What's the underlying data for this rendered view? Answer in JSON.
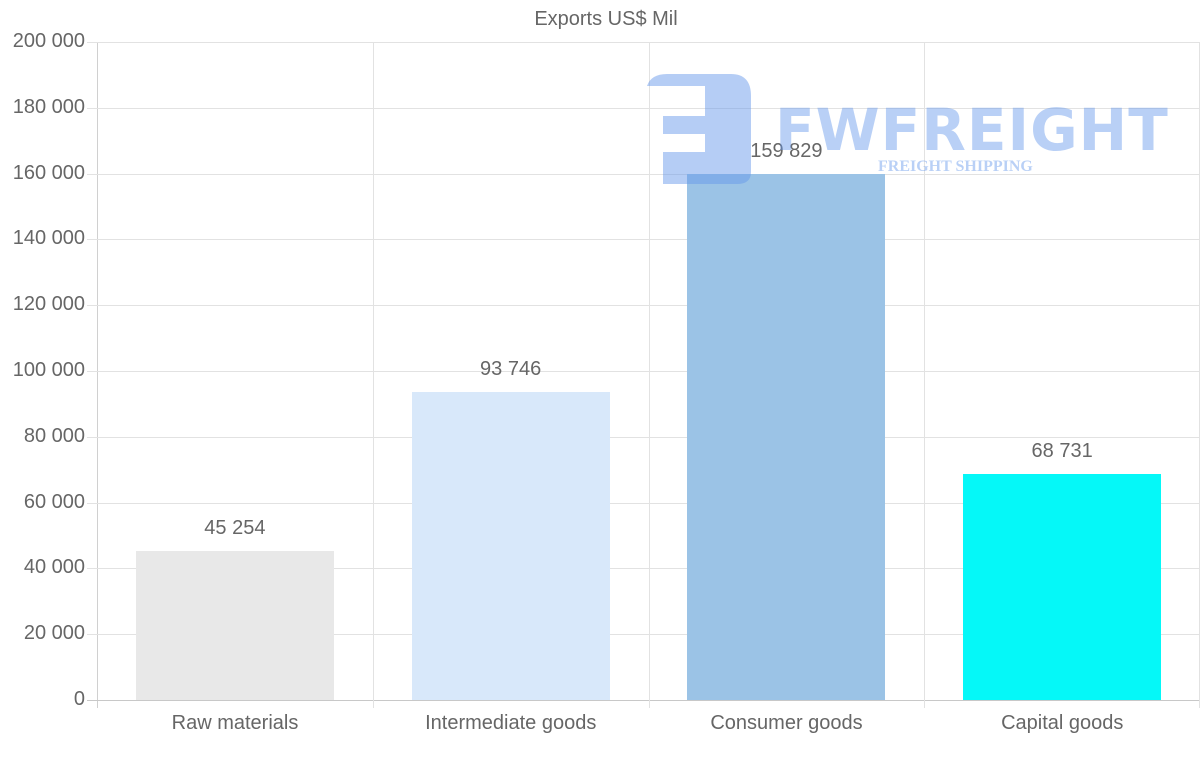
{
  "chart_data": {
    "type": "bar",
    "title": "Exports US$ Mil",
    "categories": [
      "Raw materials",
      "Intermediate goods",
      "Consumer goods",
      "Capital goods"
    ],
    "values": [
      45254,
      93746,
      159829,
      68731
    ],
    "value_labels": [
      "45 254",
      "93 746",
      "159 829",
      "68 731"
    ],
    "colors": [
      "#e8e8e8",
      "#d8e8fa",
      "#9bc3e6",
      "#05f8f8"
    ],
    "xlabel": "",
    "ylabel": "",
    "ylim": [
      0,
      200000
    ],
    "yticks": [
      0,
      20000,
      40000,
      60000,
      80000,
      100000,
      120000,
      140000,
      160000,
      180000,
      200000
    ],
    "ytick_labels": [
      "0",
      "20 000",
      "40 000",
      "60 000",
      "80 000",
      "100 000",
      "120 000",
      "140 000",
      "160 000",
      "180 000",
      "200 000"
    ],
    "grid": true,
    "legend": null
  },
  "watermark": {
    "brand": "FWFREIGHT",
    "tagline": "FREIGHT SHIPPING"
  }
}
